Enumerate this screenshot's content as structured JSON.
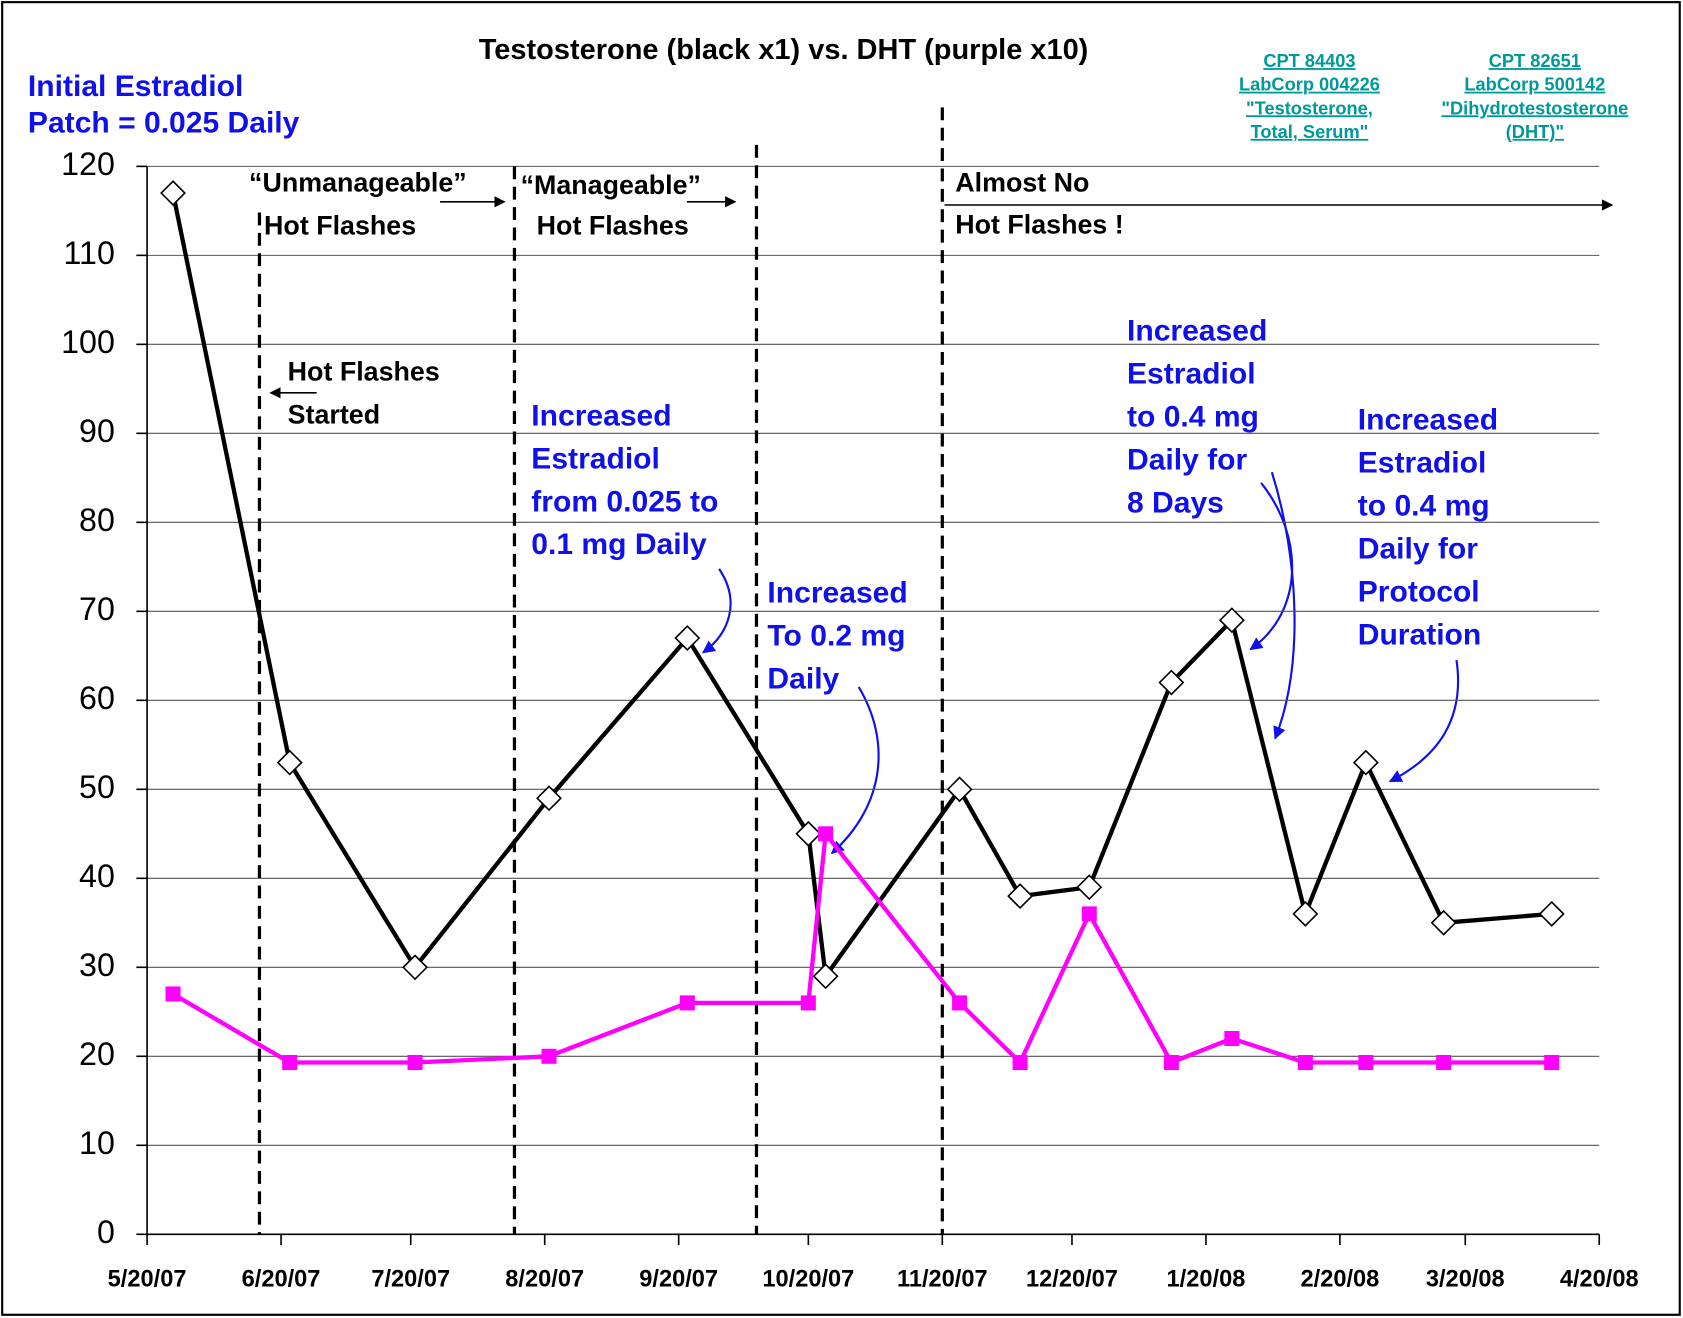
{
  "chart_data": {
    "type": "line",
    "title": "Testosterone (black x1) vs. DHT (purple x10)",
    "note": [
      "Initial Estradiol",
      "Patch = 0.025 Daily"
    ],
    "links": [
      [
        "CPT 84403",
        "LabCorp 004226",
        "\"Testosterone,",
        "Total, Serum\""
      ],
      [
        "CPT 82651",
        "LabCorp 500142",
        "\"Dihydrotestosterone",
        "(DHT)\""
      ]
    ],
    "x": [
      "5/26/07",
      "6/22/07",
      "7/21/07",
      "8/21/07",
      "9/22/07",
      "10/20/07",
      "10/24/07",
      "11/24/07",
      "12/8/07",
      "12/24/07",
      "1/12/08",
      "1/26/08",
      "2/12/08",
      "2/26/08",
      "3/15/08",
      "4/9/08"
    ],
    "series": [
      {
        "name": "Testosterone",
        "color": "#000000",
        "marker": "diamond",
        "values": [
          117,
          53,
          30,
          49,
          67,
          45,
          29,
          50,
          38,
          39,
          62,
          69,
          36,
          53,
          35,
          36
        ]
      },
      {
        "name": "DHT",
        "color": "#ff00ff",
        "marker": "square",
        "values": [
          27,
          19.3,
          19.3,
          20,
          26,
          26,
          45,
          26,
          19.3,
          36,
          19.3,
          22,
          19.3,
          19.3,
          19.3,
          19.3
        ]
      }
    ],
    "xlim": [
      "5/20/07",
      "4/20/08"
    ],
    "xticks": [
      "5/20/07",
      "6/20/07",
      "7/20/07",
      "8/20/07",
      "9/20/07",
      "10/20/07",
      "11/20/07",
      "12/20/07",
      "1/20/08",
      "2/20/08",
      "3/20/08",
      "4/20/08"
    ],
    "ylim": [
      0,
      120
    ],
    "yticks": [
      0,
      10,
      20,
      30,
      40,
      50,
      60,
      70,
      80,
      90,
      100,
      110,
      120
    ],
    "grid": true,
    "vlines": [
      "6/15/07",
      "8/13/07",
      "10/8/07",
      "11/20/07"
    ],
    "annotations": [
      [
        "“Unmanageable”",
        "Hot Flashes"
      ],
      [
        "“Manageable”",
        "Hot Flashes"
      ],
      [
        "Almost No",
        "Hot Flashes !"
      ],
      [
        "Hot Flashes",
        "Started"
      ],
      [
        "Increased",
        "Estradiol",
        "from 0.025 to",
        "0.1 mg Daily"
      ],
      [
        "Increased",
        "To 0.2 mg",
        "Daily"
      ],
      [
        "Increased",
        "Estradiol",
        "to 0.4 mg",
        "Daily for",
        "8 Days"
      ],
      [
        "Increased",
        "Estradiol",
        "to 0.4 mg",
        "Daily for",
        "Protocol",
        "Duration"
      ]
    ]
  }
}
